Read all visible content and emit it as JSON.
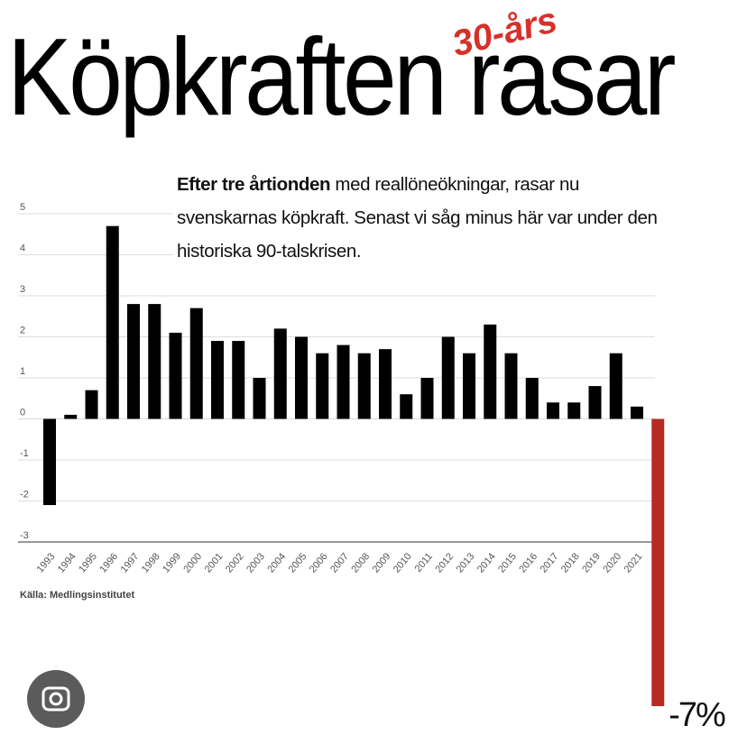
{
  "chart_data": {
    "type": "bar",
    "title": "Köpkraften rasar",
    "annotation": "30-års",
    "subtitle_bold": "Efter tre årtionden",
    "subtitle": "med reallöneökningar, rasar nu svenskarnas köpkraft. Senast vi såg minus här var under den historiska 90-talskrisen.",
    "source": "Källa: Medlingsinstitutet",
    "categories": [
      "1993",
      "1994",
      "1995",
      "1996",
      "1997",
      "1998",
      "1999",
      "2000",
      "2001",
      "2002",
      "2003",
      "2004",
      "2005",
      "2006",
      "2007",
      "2008",
      "2009",
      "2010",
      "2011",
      "2012",
      "2013",
      "2014",
      "2015",
      "2016",
      "2017",
      "2018",
      "2019",
      "2020",
      "2021",
      null
    ],
    "values": [
      -2.1,
      0.1,
      0.7,
      4.7,
      2.8,
      2.8,
      2.1,
      2.7,
      1.9,
      1.9,
      1.0,
      2.2,
      2.0,
      1.6,
      1.8,
      1.6,
      1.7,
      0.6,
      1.0,
      2.0,
      1.6,
      2.3,
      1.6,
      1.0,
      0.4,
      0.4,
      0.8,
      1.6,
      0.3,
      -7
    ],
    "value_labels": [
      null,
      null,
      null,
      null,
      null,
      null,
      null,
      null,
      null,
      null,
      null,
      null,
      null,
      null,
      null,
      null,
      null,
      null,
      null,
      null,
      null,
      null,
      null,
      null,
      null,
      null,
      null,
      null,
      null,
      "-7%"
    ],
    "colors": [
      "#000000",
      "#000000",
      "#000000",
      "#000000",
      "#000000",
      "#000000",
      "#000000",
      "#000000",
      "#000000",
      "#000000",
      "#000000",
      "#000000",
      "#000000",
      "#000000",
      "#000000",
      "#000000",
      "#000000",
      "#000000",
      "#000000",
      "#000000",
      "#000000",
      "#000000",
      "#000000",
      "#000000",
      "#000000",
      "#000000",
      "#000000",
      "#000000",
      "#000000",
      "#b52a23"
    ],
    "ylim": [
      -3,
      5
    ],
    "yticks": [
      -3,
      -2,
      -1,
      0,
      1,
      2,
      3,
      4,
      5
    ],
    "grid": true
  }
}
